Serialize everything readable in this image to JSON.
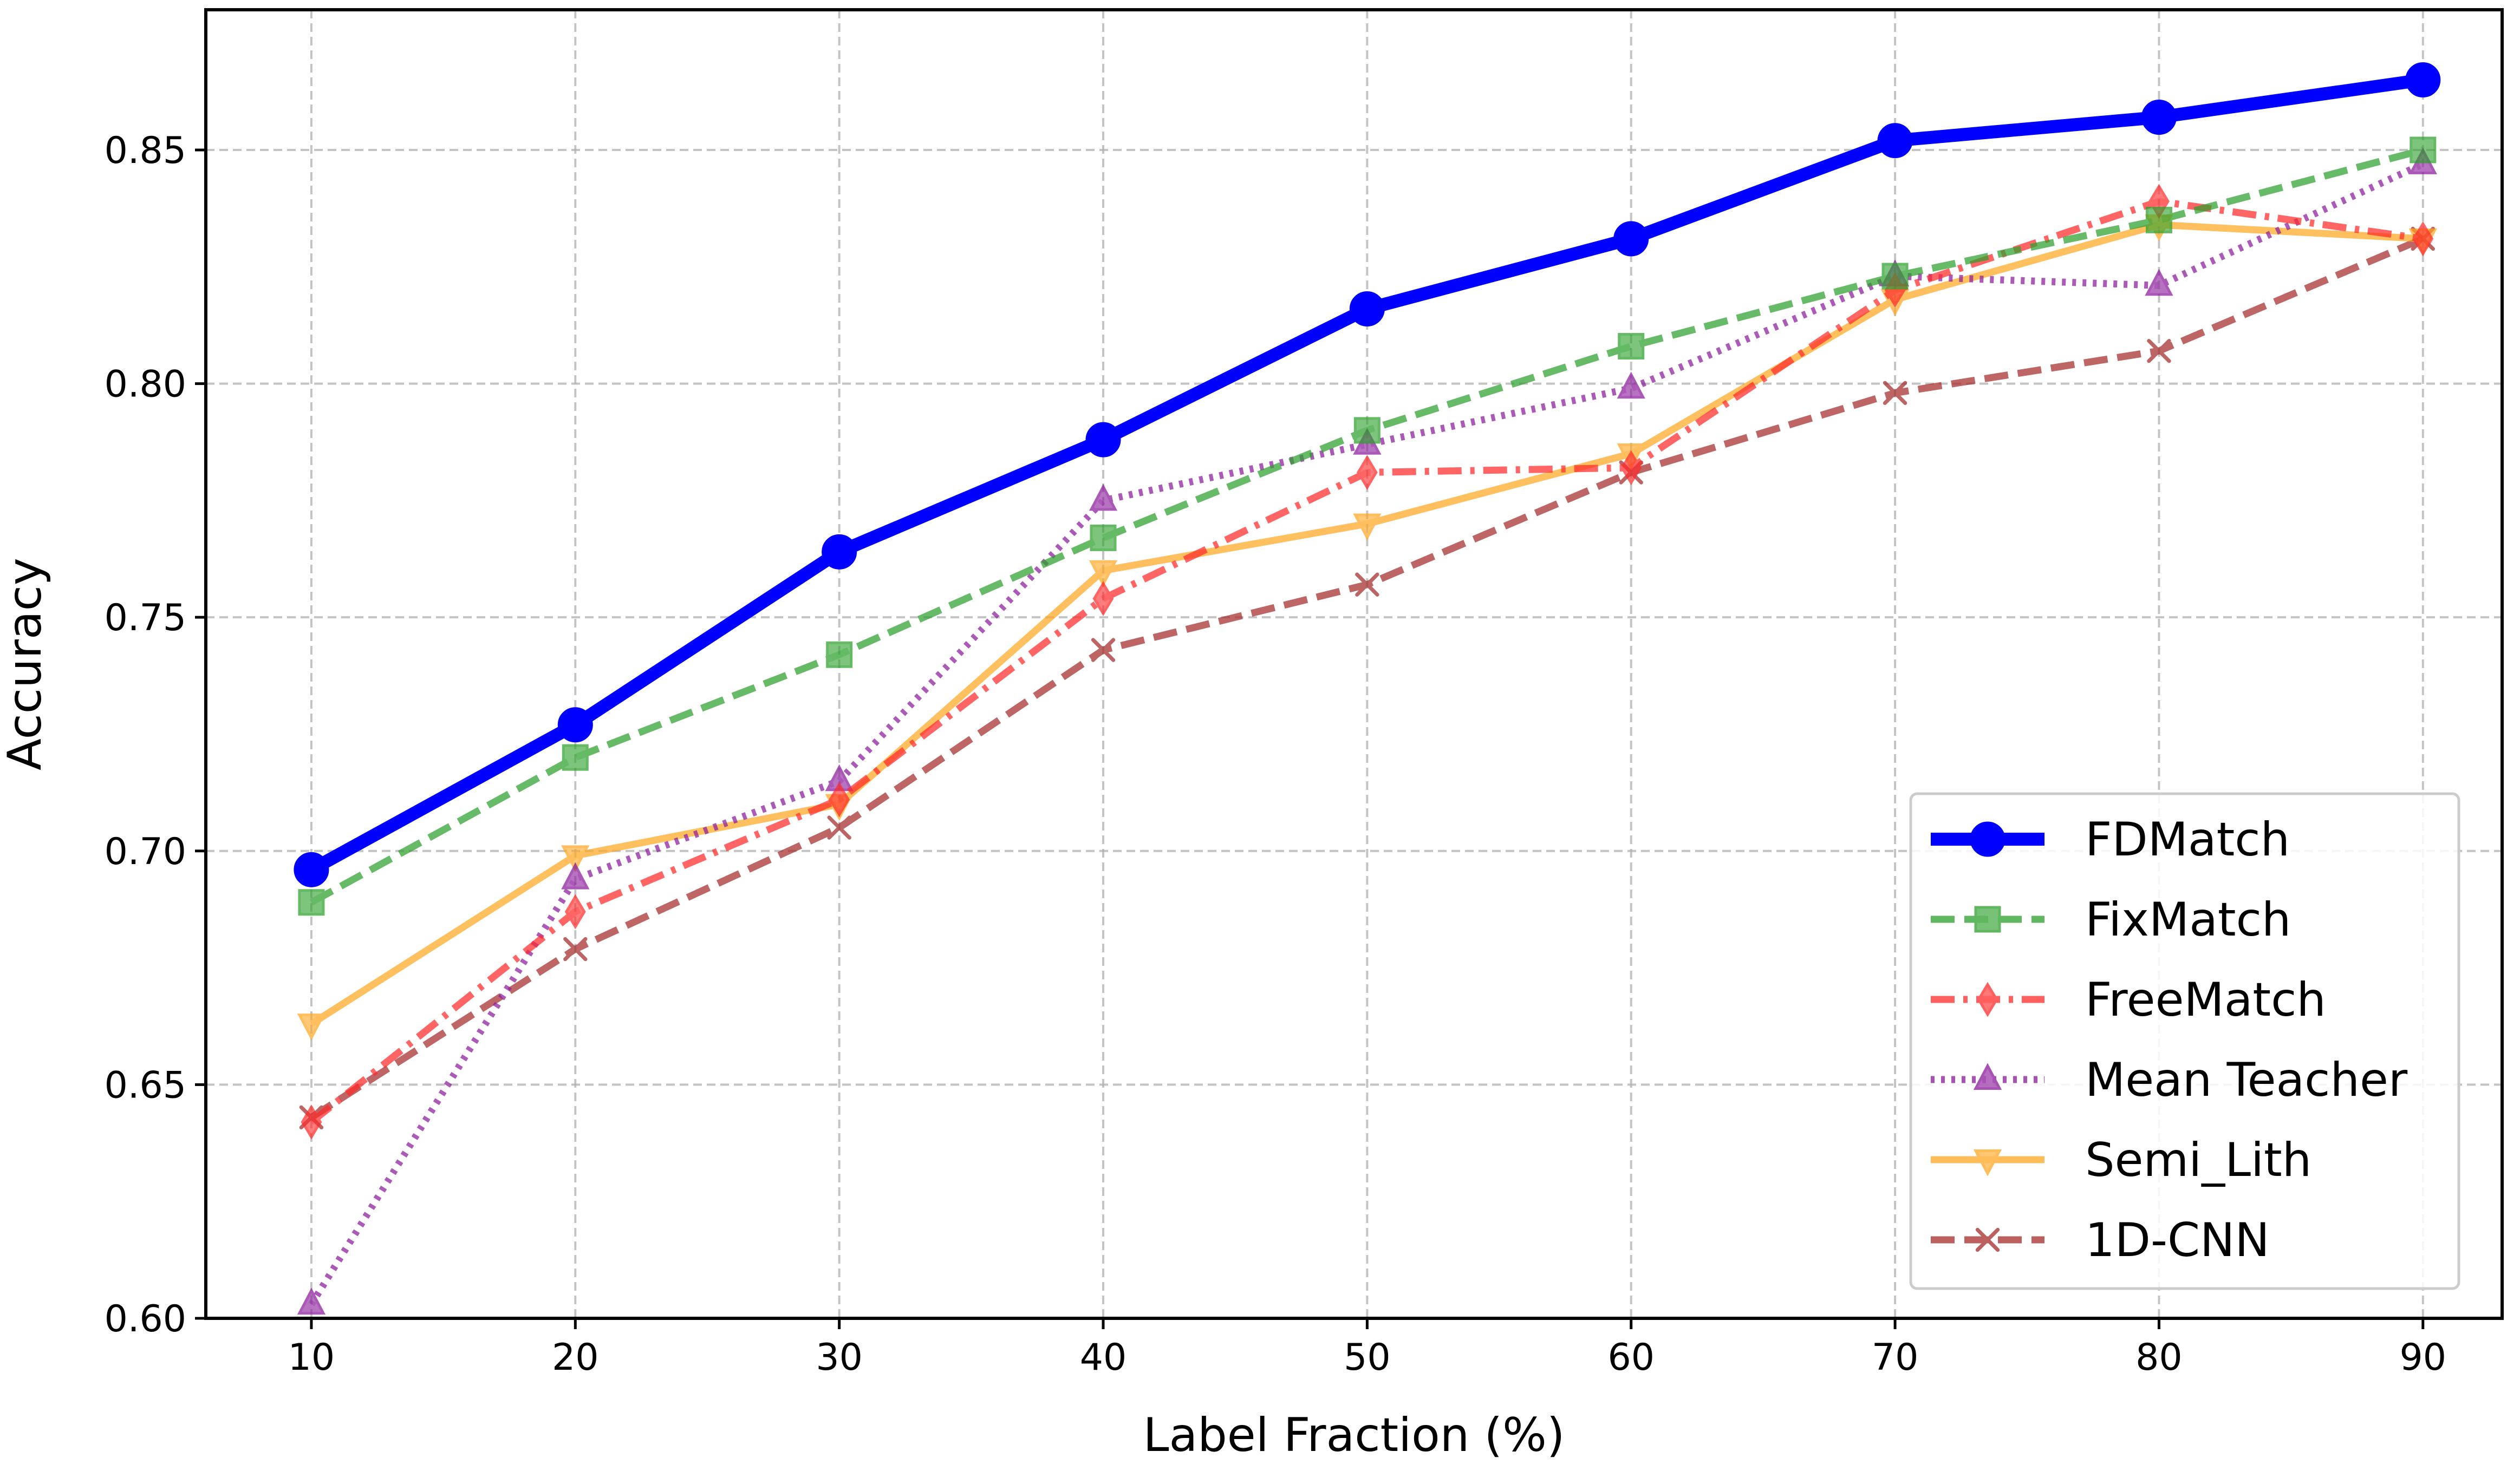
{
  "chart_data": {
    "type": "line",
    "title": "",
    "xlabel": "Label Fraction (%)",
    "ylabel": "Accuracy",
    "x": [
      10,
      20,
      30,
      40,
      50,
      60,
      70,
      80,
      90
    ],
    "xticks": [
      "10",
      "20",
      "30",
      "40",
      "50",
      "60",
      "70",
      "80",
      "90"
    ],
    "yticks": [
      "0.60",
      "0.65",
      "0.70",
      "0.75",
      "0.80",
      "0.85"
    ],
    "xlim": [
      6,
      93
    ],
    "ylim": [
      0.6,
      0.88
    ],
    "grid": true,
    "legend_position": "lower-right",
    "series": [
      {
        "name": "FDMatch",
        "color": "#0000ff",
        "linestyle": "solid",
        "marker": "circle",
        "emphasis": true,
        "values": [
          0.696,
          0.727,
          0.764,
          0.788,
          0.816,
          0.831,
          0.852,
          0.857,
          0.865
        ]
      },
      {
        "name": "FixMatch",
        "color": "#2ca02c",
        "linestyle": "dashed",
        "marker": "square",
        "values": [
          0.689,
          0.72,
          0.742,
          0.767,
          0.79,
          0.808,
          0.823,
          0.835,
          0.85
        ]
      },
      {
        "name": "FreeMatch",
        "color": "#ff2a2a",
        "linestyle": "dashdot",
        "marker": "diamond",
        "values": [
          0.642,
          0.687,
          0.711,
          0.754,
          0.781,
          0.782,
          0.82,
          0.839,
          0.831
        ]
      },
      {
        "name": "Mean Teacher",
        "color": "#8b1a9c",
        "linestyle": "dotted",
        "marker": "triangle-up",
        "values": [
          0.603,
          0.694,
          0.715,
          0.775,
          0.787,
          0.799,
          0.823,
          0.821,
          0.847
        ]
      },
      {
        "name": "Semi_Lith",
        "color": "#ffa722",
        "linestyle": "solid",
        "marker": "triangle-down",
        "values": [
          0.663,
          0.699,
          0.71,
          0.76,
          0.77,
          0.785,
          0.818,
          0.834,
          0.831
        ]
      },
      {
        "name": "1D-CNN",
        "color": "#a52a2a",
        "linestyle": "dashed",
        "marker": "x",
        "values": [
          0.643,
          0.679,
          0.705,
          0.743,
          0.757,
          0.781,
          0.798,
          0.807,
          0.831
        ]
      }
    ]
  }
}
